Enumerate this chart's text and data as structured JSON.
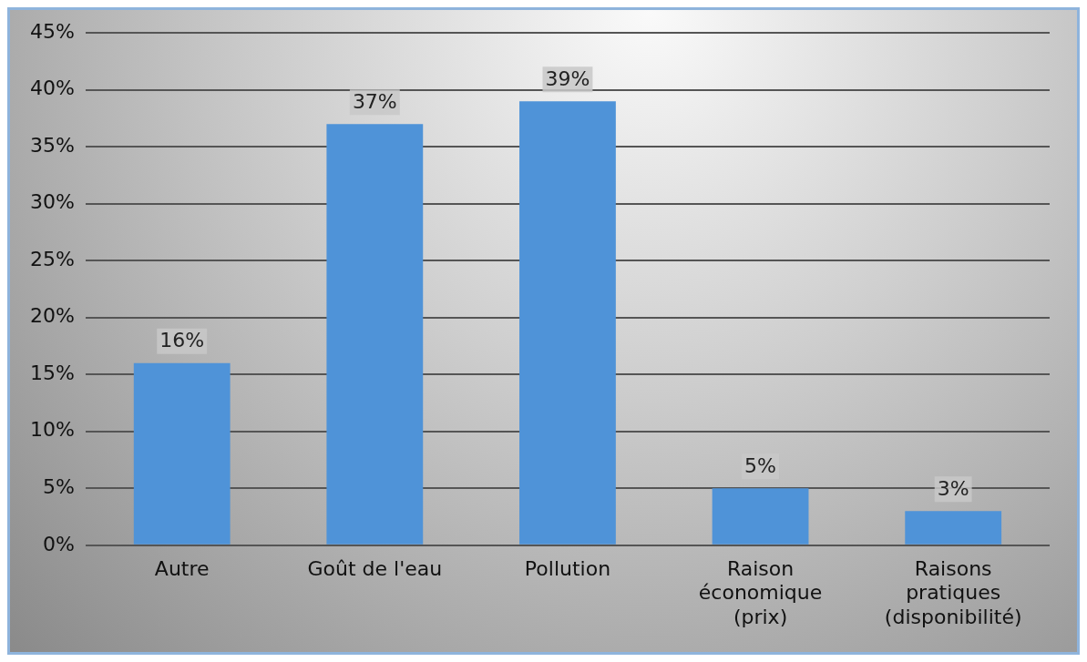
{
  "chart_data": {
    "type": "bar",
    "categories": [
      "Autre",
      "Goût de l'eau",
      "Pollution",
      "Raison économique (prix)",
      "Raisons pratiques (disponibilité)"
    ],
    "values": [
      16,
      37,
      39,
      5,
      3
    ],
    "value_labels": [
      "16%",
      "37%",
      "39%",
      "5%",
      "3%"
    ],
    "color": "#4f93d8",
    "ylim": [
      0,
      45
    ],
    "yticks": [
      {
        "value": 0,
        "label": "0%"
      },
      {
        "value": 5,
        "label": "5%"
      },
      {
        "value": 10,
        "label": "10%"
      },
      {
        "value": 15,
        "label": "15%"
      },
      {
        "value": 20,
        "label": "20%"
      },
      {
        "value": 25,
        "label": "25%"
      },
      {
        "value": 30,
        "label": "30%"
      },
      {
        "value": 35,
        "label": "35%"
      },
      {
        "value": 40,
        "label": "40%"
      },
      {
        "value": 45,
        "label": "45%"
      }
    ],
    "grid": "y"
  }
}
